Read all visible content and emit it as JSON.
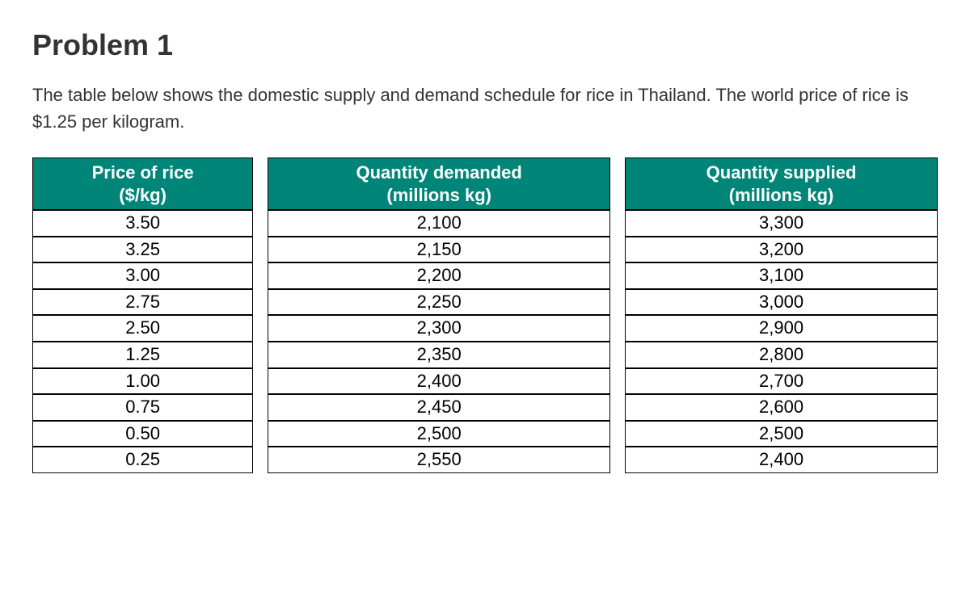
{
  "heading": "Problem 1",
  "description": "The table below shows the domestic supply and demand schedule for rice in Thailand. The world price of rice is $1.25 per kilogram.",
  "table": {
    "type": "table",
    "header_bg_color": "#008578",
    "header_text_color": "#ffffff",
    "border_color": "#000000",
    "cell_bg_color": "#ffffff",
    "cell_text_color": "#000000",
    "header_fontsize": 22,
    "cell_fontsize": 22,
    "columns": [
      {
        "title": "Price of rice",
        "subtitle": "($/kg)"
      },
      {
        "title": "Quantity demanded",
        "subtitle": "(millions kg)"
      },
      {
        "title": "Quantity supplied",
        "subtitle": "(millions kg)"
      }
    ],
    "rows": [
      [
        "3.50",
        "2,100",
        "3,300"
      ],
      [
        "3.25",
        "2,150",
        "3,200"
      ],
      [
        "3.00",
        "2,200",
        "3,100"
      ],
      [
        "2.75",
        "2,250",
        "3,000"
      ],
      [
        "2.50",
        "2,300",
        "2,900"
      ],
      [
        "1.25",
        "2,350",
        "2,800"
      ],
      [
        "1.00",
        "2,400",
        "2,700"
      ],
      [
        "0.75",
        "2,450",
        "2,600"
      ],
      [
        "0.50",
        "2,500",
        "2,500"
      ],
      [
        "0.25",
        "2,550",
        "2,400"
      ]
    ]
  }
}
